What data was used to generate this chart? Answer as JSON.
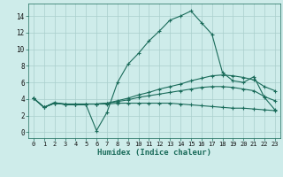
{
  "xlabel": "Humidex (Indice chaleur)",
  "background_color": "#ceecea",
  "grid_color": "#aacfcc",
  "line_color": "#1a6b5a",
  "xlim": [
    -0.5,
    23.5
  ],
  "ylim": [
    -0.7,
    15.5
  ],
  "xticks": [
    0,
    1,
    2,
    3,
    4,
    5,
    6,
    7,
    8,
    9,
    10,
    11,
    12,
    13,
    14,
    15,
    16,
    17,
    18,
    19,
    20,
    21,
    22,
    23
  ],
  "yticks": [
    0,
    2,
    4,
    6,
    8,
    10,
    12,
    14
  ],
  "line1_x": [
    0,
    1,
    2,
    3,
    4,
    5,
    6,
    7,
    8,
    9,
    10,
    11,
    12,
    13,
    14,
    15,
    16,
    17,
    18,
    19,
    20,
    21,
    22,
    23
  ],
  "line1_y": [
    4.1,
    3.0,
    3.6,
    3.3,
    3.3,
    3.3,
    0.2,
    2.4,
    6.0,
    8.2,
    9.5,
    11.0,
    12.2,
    13.5,
    14.0,
    14.6,
    13.2,
    11.8,
    7.2,
    6.2,
    6.0,
    6.7,
    4.2,
    2.7
  ],
  "line2_x": [
    0,
    1,
    2,
    3,
    4,
    5,
    6,
    7,
    8,
    9,
    10,
    11,
    12,
    13,
    14,
    15,
    16,
    17,
    18,
    19,
    20,
    21,
    22,
    23
  ],
  "line2_y": [
    4.1,
    3.0,
    3.5,
    3.4,
    3.4,
    3.4,
    3.4,
    3.5,
    3.8,
    4.1,
    4.5,
    4.8,
    5.2,
    5.5,
    5.8,
    6.2,
    6.5,
    6.8,
    6.9,
    6.8,
    6.6,
    6.3,
    5.5,
    5.0
  ],
  "line3_x": [
    0,
    1,
    2,
    3,
    4,
    5,
    6,
    7,
    8,
    9,
    10,
    11,
    12,
    13,
    14,
    15,
    16,
    17,
    18,
    19,
    20,
    21,
    22,
    23
  ],
  "line3_y": [
    4.1,
    3.0,
    3.5,
    3.4,
    3.4,
    3.4,
    3.4,
    3.5,
    3.7,
    3.9,
    4.2,
    4.4,
    4.6,
    4.8,
    5.0,
    5.2,
    5.4,
    5.5,
    5.5,
    5.4,
    5.2,
    5.0,
    4.3,
    3.8
  ],
  "line4_x": [
    0,
    1,
    2,
    3,
    4,
    5,
    6,
    7,
    8,
    9,
    10,
    11,
    12,
    13,
    14,
    15,
    16,
    17,
    18,
    19,
    20,
    21,
    22,
    23
  ],
  "line4_y": [
    4.1,
    3.0,
    3.5,
    3.4,
    3.4,
    3.4,
    3.4,
    3.4,
    3.5,
    3.5,
    3.5,
    3.5,
    3.5,
    3.5,
    3.4,
    3.3,
    3.2,
    3.1,
    3.0,
    2.9,
    2.9,
    2.8,
    2.7,
    2.6
  ]
}
